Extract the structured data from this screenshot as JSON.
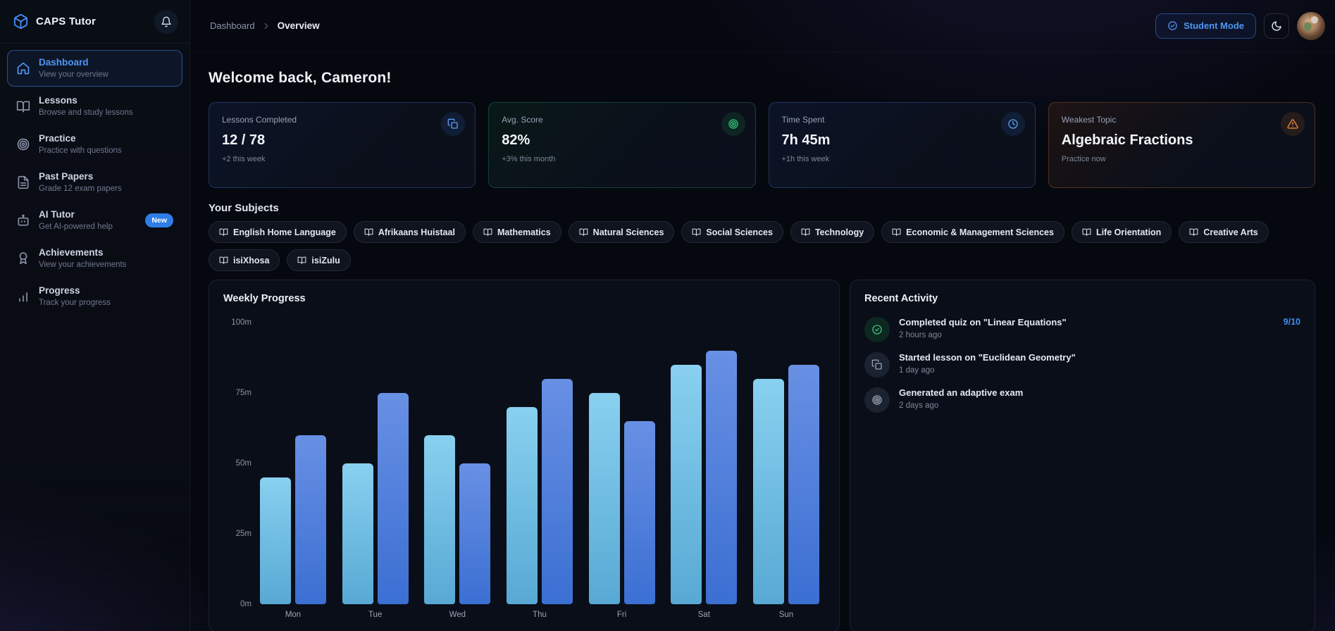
{
  "app": {
    "name": "CAPS Tutor",
    "logo_icon": "box-icon",
    "notification_icon": "bell-icon"
  },
  "header": {
    "breadcrumb": {
      "parent": "Dashboard",
      "current": "Overview"
    },
    "student_mode_button": {
      "label": "Student Mode",
      "icon": "check-circle-icon"
    },
    "theme_toggle_icon": "moon-icon"
  },
  "sidebar": {
    "items": [
      {
        "title": "Dashboard",
        "subtitle": "View your overview",
        "icon": "home-icon",
        "active": true
      },
      {
        "title": "Lessons",
        "subtitle": "Browse and study lessons",
        "icon": "book-open-icon",
        "active": false
      },
      {
        "title": "Practice",
        "subtitle": "Practice with questions",
        "icon": "target-icon",
        "active": false
      },
      {
        "title": "Past Papers",
        "subtitle": "Grade 12 exam papers",
        "icon": "file-text-icon",
        "active": false
      },
      {
        "title": "AI Tutor",
        "subtitle": "Get AI-powered help",
        "icon": "bot-icon",
        "active": false,
        "badge": "New"
      },
      {
        "title": "Achievements",
        "subtitle": "View your achievements",
        "icon": "award-icon",
        "active": false
      },
      {
        "title": "Progress",
        "subtitle": "Track your progress",
        "icon": "bar-chart-icon",
        "active": false
      }
    ]
  },
  "main": {
    "welcome": "Welcome back, Cameron!",
    "stats": [
      {
        "label": "Lessons Completed",
        "value": "12 / 78",
        "sub": "+2 this week",
        "icon": "copy-icon",
        "accent": "blue"
      },
      {
        "label": "Avg. Score",
        "value": "82%",
        "sub": "+3% this month",
        "icon": "target-icon",
        "accent": "green"
      },
      {
        "label": "Time Spent",
        "value": "7h 45m",
        "sub": "+1h this week",
        "icon": "clock-icon",
        "accent": "blue"
      },
      {
        "label": "Weakest Topic",
        "value": "Algebraic Fractions",
        "sub": "Practice now",
        "icon": "alert-triangle-icon",
        "accent": "orange"
      }
    ],
    "subjects": {
      "heading": "Your Subjects",
      "chip_icon": "book-open-icon",
      "chips": [
        "English Home Language",
        "Afrikaans Huistaal",
        "Mathematics",
        "Natural Sciences",
        "Social Sciences",
        "Technology",
        "Economic & Management Sciences",
        "Life Orientation",
        "Creative Arts",
        "isiXhosa",
        "isiZulu"
      ]
    },
    "activity": {
      "title": "Recent Activity",
      "items": [
        {
          "title": "Completed quiz on \"Linear Equations\"",
          "time": "2 hours ago",
          "score": "9/10",
          "icon": "check-circle-icon",
          "accent": "green"
        },
        {
          "title": "Started lesson on \"Euclidean Geometry\"",
          "time": "1 day ago",
          "icon": "copy-icon",
          "accent": "gray"
        },
        {
          "title": "Generated an adaptive exam",
          "time": "2 days ago",
          "icon": "target-icon",
          "accent": "gray"
        }
      ]
    }
  },
  "chart_data": {
    "type": "bar",
    "title": "Weekly Progress",
    "categories": [
      "Mon",
      "Tue",
      "Wed",
      "Thu",
      "Fri",
      "Sat",
      "Sun"
    ],
    "series": [
      {
        "name": "minutes-light",
        "values": [
          45,
          50,
          60,
          70,
          75,
          85,
          80
        ],
        "color_top": "#89d0f0",
        "color_bottom": "#57a9d4"
      },
      {
        "name": "minutes-dark",
        "values": [
          60,
          75,
          50,
          80,
          65,
          90,
          85
        ],
        "color_top": "#6890e4",
        "color_bottom": "#3b6fd2"
      }
    ],
    "yticks": [
      "100m",
      "75m",
      "50m",
      "25m",
      "0m"
    ],
    "ylim": [
      0,
      100
    ],
    "unit": "m",
    "grid": false,
    "legend": false
  },
  "colors": {
    "accent_blue": "#4e97f4",
    "accent_green": "#34c07a",
    "accent_orange": "#f08b3c",
    "badge_new": "#2e7ee6",
    "score_text": "#3f8cf2"
  }
}
